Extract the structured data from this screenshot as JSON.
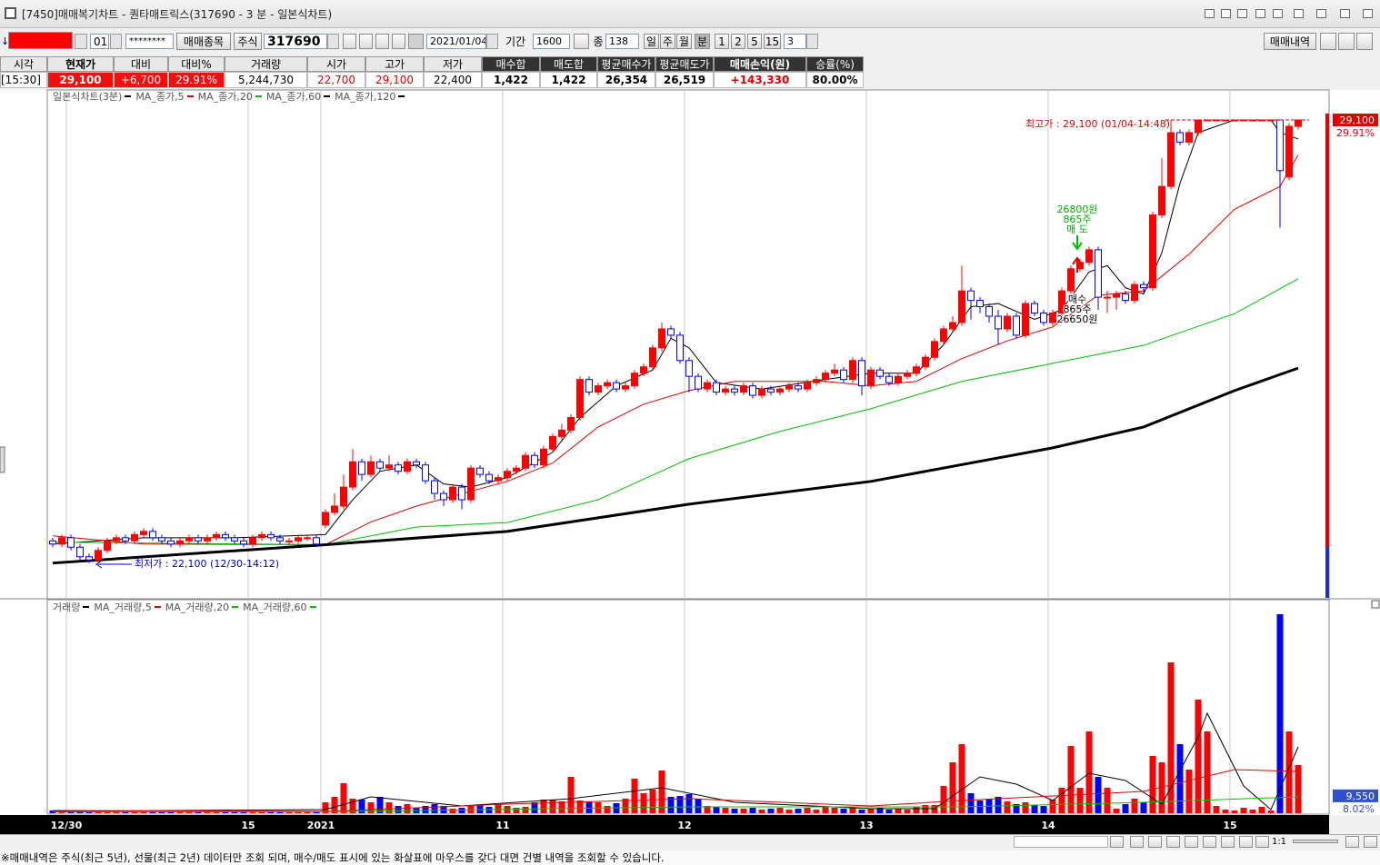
{
  "window": {
    "title": "[7450]매매복기차트 - 퀀타매트릭스(317690 - 3 분 - 일본식차트)"
  },
  "toolbar": {
    "arrow": "↓",
    "account_no": "01",
    "password": "********",
    "stock_button": "매매종목",
    "market": "주식",
    "code": "317690",
    "date": "2021/01/04",
    "period_label": "기간",
    "period": "1600",
    "count_label": "종",
    "count": "138",
    "units": [
      "일",
      "주",
      "월",
      "분"
    ],
    "intervals": [
      "1",
      "2",
      "5",
      "15"
    ],
    "interval": "3",
    "history_button": "매매내역"
  },
  "quote": {
    "headers": [
      "시각",
      "현재가",
      "대비",
      "대비%",
      "거래량",
      "시가",
      "고가",
      "저가",
      "매수합",
      "매도합",
      "평균매수가",
      "평균매도가",
      "매매손익(원)",
      "승률(%)"
    ],
    "values": [
      "[15:30]",
      "29,100",
      "+6,700",
      "29.91%",
      "5,244,730",
      "22,700",
      "29,100",
      "22,400",
      "1,422",
      "1,422",
      "26,354",
      "26,519",
      "+143,330",
      "80.00%"
    ]
  },
  "chart": {
    "type": "candlestick",
    "title": "일본식차트(3분)",
    "up_color": "#ff0000",
    "down_color": "#0000ff",
    "ylim": [
      21550,
      29560
    ],
    "xticks": [
      {
        "value": 1.5,
        "label": "12/30"
      },
      {
        "value": 21.5,
        "label": "15"
      },
      {
        "value": 29.5,
        "label": "2021"
      },
      {
        "value": 49.5,
        "label": "11"
      },
      {
        "value": 69.5,
        "label": "12"
      },
      {
        "value": 89.5,
        "label": "13"
      },
      {
        "value": 109.5,
        "label": "14"
      },
      {
        "value": 129.5,
        "label": "15"
      }
    ],
    "candles": [
      [
        22450,
        22500,
        22350,
        22400
      ],
      [
        22400,
        22550,
        22350,
        22500
      ],
      [
        22500,
        22550,
        22300,
        22350
      ],
      [
        22350,
        22400,
        22150,
        22200
      ],
      [
        22200,
        22250,
        22100,
        22150
      ],
      [
        22150,
        22350,
        22100,
        22300
      ],
      [
        22300,
        22500,
        22250,
        22450
      ],
      [
        22450,
        22550,
        22400,
        22500
      ],
      [
        22500,
        22550,
        22400,
        22450
      ],
      [
        22450,
        22600,
        22400,
        22550
      ],
      [
        22550,
        22650,
        22500,
        22600
      ],
      [
        22600,
        22650,
        22450,
        22500
      ],
      [
        22500,
        22550,
        22400,
        22450
      ],
      [
        22450,
        22500,
        22350,
        22400
      ],
      [
        22400,
        22500,
        22350,
        22450
      ],
      [
        22450,
        22550,
        22400,
        22500
      ],
      [
        22500,
        22550,
        22400,
        22450
      ],
      [
        22450,
        22550,
        22400,
        22500
      ],
      [
        22500,
        22600,
        22450,
        22550
      ],
      [
        22550,
        22600,
        22450,
        22500
      ],
      [
        22500,
        22550,
        22400,
        22450
      ],
      [
        22450,
        22500,
        22350,
        22400
      ],
      [
        22400,
        22550,
        22350,
        22500
      ],
      [
        22500,
        22600,
        22450,
        22550
      ],
      [
        22550,
        22600,
        22450,
        22500
      ],
      [
        22500,
        22550,
        22400,
        22450
      ],
      [
        22450,
        22500,
        22400,
        22450
      ],
      [
        22450,
        22550,
        22400,
        22500
      ],
      [
        22500,
        22550,
        22450,
        22500
      ],
      [
        22500,
        22550,
        22350,
        22400
      ],
      [
        22700,
        22950,
        22650,
        22900
      ],
      [
        22900,
        23200,
        22850,
        23000
      ],
      [
        23000,
        23500,
        22950,
        23300
      ],
      [
        23300,
        23900,
        23250,
        23700
      ],
      [
        23700,
        23750,
        23400,
        23500
      ],
      [
        23500,
        23800,
        23450,
        23700
      ],
      [
        23700,
        23750,
        23550,
        23600
      ],
      [
        23600,
        23800,
        23550,
        23650
      ],
      [
        23650,
        23700,
        23500,
        23550
      ],
      [
        23550,
        23750,
        23500,
        23700
      ],
      [
        23700,
        23750,
        23600,
        23650
      ],
      [
        23650,
        23700,
        23350,
        23400
      ],
      [
        23400,
        23450,
        23100,
        23200
      ],
      [
        23200,
        23250,
        23000,
        23100
      ],
      [
        23100,
        23350,
        23050,
        23300
      ],
      [
        23300,
        23350,
        22950,
        23100
      ],
      [
        23100,
        23650,
        23050,
        23600
      ],
      [
        23600,
        23650,
        23450,
        23500
      ],
      [
        23500,
        23550,
        23350,
        23400
      ],
      [
        23400,
        23500,
        23350,
        23450
      ],
      [
        23450,
        23600,
        23400,
        23550
      ],
      [
        23550,
        23650,
        23500,
        23600
      ],
      [
        23600,
        23850,
        23550,
        23800
      ],
      [
        23800,
        23850,
        23600,
        23650
      ],
      [
        23650,
        23950,
        23600,
        23900
      ],
      [
        23900,
        24150,
        23850,
        24100
      ],
      [
        24100,
        24300,
        24050,
        24200
      ],
      [
        24200,
        24450,
        24150,
        24400
      ],
      [
        24400,
        25050,
        24350,
        25000
      ],
      [
        25000,
        25050,
        24750,
        24800
      ],
      [
        24800,
        24950,
        24750,
        24900
      ],
      [
        24900,
        25000,
        24850,
        24950
      ],
      [
        24950,
        25000,
        24800,
        24850
      ],
      [
        24850,
        24950,
        24800,
        24900
      ],
      [
        24900,
        25150,
        24850,
        25100
      ],
      [
        25100,
        25250,
        25050,
        25200
      ],
      [
        25200,
        25550,
        25150,
        25500
      ],
      [
        25500,
        25900,
        25450,
        25800
      ],
      [
        25800,
        25850,
        25650,
        25700
      ],
      [
        25700,
        25750,
        25250,
        25300
      ],
      [
        25300,
        25350,
        24800,
        25050
      ],
      [
        25050,
        25100,
        24800,
        24850
      ],
      [
        24850,
        25000,
        24800,
        24950
      ],
      [
        24950,
        25000,
        24750,
        24800
      ],
      [
        24800,
        24900,
        24750,
        24850
      ],
      [
        24850,
        24900,
        24750,
        24800
      ],
      [
        24800,
        24950,
        24750,
        24900
      ],
      [
        24900,
        24950,
        24700,
        24750
      ],
      [
        24750,
        24900,
        24700,
        24850
      ],
      [
        24850,
        24900,
        24750,
        24800
      ],
      [
        24800,
        24900,
        24750,
        24850
      ],
      [
        24850,
        24950,
        24800,
        24900
      ],
      [
        24900,
        24950,
        24800,
        24850
      ],
      [
        24850,
        25000,
        24800,
        24950
      ],
      [
        24950,
        25050,
        24900,
        25000
      ],
      [
        25000,
        25150,
        24950,
        25100
      ],
      [
        25100,
        25250,
        25050,
        25150
      ],
      [
        25150,
        25200,
        24950,
        25000
      ],
      [
        25000,
        25350,
        24950,
        25300
      ],
      [
        25300,
        25350,
        24750,
        24900
      ],
      [
        24900,
        25200,
        24850,
        25150
      ],
      [
        25150,
        25200,
        25000,
        25050
      ],
      [
        25050,
        25100,
        24900,
        24950
      ],
      [
        24950,
        25100,
        24900,
        25050
      ],
      [
        25050,
        25150,
        25000,
        25100
      ],
      [
        25100,
        25250,
        25050,
        25200
      ],
      [
        25200,
        25400,
        25150,
        25350
      ],
      [
        25350,
        25650,
        25300,
        25600
      ],
      [
        25600,
        25850,
        25550,
        25800
      ],
      [
        25800,
        26000,
        25750,
        25900
      ],
      [
        25900,
        26800,
        25850,
        26400
      ],
      [
        26400,
        26450,
        25950,
        26250
      ],
      [
        26250,
        26300,
        26050,
        26150
      ],
      [
        26150,
        26200,
        25900,
        26000
      ],
      [
        26000,
        26100,
        25550,
        25800
      ],
      [
        25800,
        26050,
        25750,
        26000
      ],
      [
        26000,
        26050,
        25650,
        25700
      ],
      [
        25700,
        26250,
        25650,
        26200
      ],
      [
        26200,
        26250,
        26000,
        26050
      ],
      [
        26050,
        26100,
        25850,
        25900
      ],
      [
        25900,
        26100,
        25850,
        26050
      ],
      [
        26050,
        26450,
        26000,
        26400
      ],
      [
        26400,
        26800,
        26350,
        26750
      ],
      [
        26750,
        26900,
        26700,
        26850
      ],
      [
        26850,
        27100,
        26800,
        27050
      ],
      [
        27050,
        27100,
        26100,
        26300
      ],
      [
        26300,
        26400,
        26050,
        26300
      ],
      [
        26300,
        26400,
        26100,
        26350
      ],
      [
        26350,
        26400,
        26200,
        26250
      ],
      [
        26250,
        26550,
        26200,
        26500
      ],
      [
        26500,
        26550,
        26350,
        26450
      ],
      [
        26450,
        27650,
        26400,
        27600
      ],
      [
        27600,
        28500,
        27550,
        28050
      ],
      [
        28050,
        29100,
        28000,
        28900
      ],
      [
        28900,
        28950,
        28700,
        28750
      ],
      [
        28750,
        28950,
        28700,
        28900
      ],
      [
        28900,
        29100,
        28850,
        29100
      ],
      [
        29100,
        29100,
        29100,
        29100
      ],
      [
        29100,
        29100,
        29100,
        29100
      ],
      [
        29100,
        29100,
        29100,
        29100
      ],
      [
        29100,
        29100,
        29100,
        29100
      ],
      [
        29100,
        29100,
        29100,
        29100
      ],
      [
        29100,
        29100,
        29100,
        29100
      ],
      [
        29100,
        29100,
        29100,
        29100
      ],
      [
        29100,
        29100,
        29100,
        29100
      ],
      [
        29100,
        29100,
        27400,
        28300
      ],
      [
        28200,
        29050,
        28150,
        29000
      ],
      [
        29000,
        29100,
        28950,
        29100
      ]
    ],
    "ma": [
      {
        "name": "MA_종가,5",
        "color": "#000000",
        "width": 1,
        "x": [
          0,
          10,
          20,
          30,
          33,
          36,
          40,
          43,
          46,
          50,
          55,
          58,
          62,
          66,
          68,
          70,
          73,
          78,
          85,
          90,
          95,
          98,
          101,
          104,
          108,
          111,
          114,
          116,
          118,
          120,
          122,
          124,
          126,
          130,
          134,
          135,
          137
        ],
        "values": [
          22400,
          22500,
          22500,
          22550,
          23100,
          23550,
          23650,
          23350,
          23300,
          23450,
          23850,
          24400,
          24900,
          25150,
          25650,
          25500,
          24950,
          24850,
          25000,
          25100,
          25100,
          25550,
          26150,
          26200,
          25950,
          26100,
          26700,
          26800,
          26450,
          26350,
          27000,
          28100,
          28900,
          29100,
          29100,
          28900,
          28800
        ]
      },
      {
        "name": "MA_종가,20",
        "color": "#e00000",
        "width": 1,
        "x": [
          0,
          10,
          30,
          35,
          40,
          50,
          55,
          60,
          65,
          70,
          75,
          85,
          90,
          95,
          100,
          105,
          110,
          115,
          120,
          125,
          130,
          135,
          137
        ],
        "values": [
          22530,
          22400,
          22390,
          22750,
          23000,
          23390,
          23680,
          24250,
          24610,
          24825,
          24970,
          24970,
          24900,
          24970,
          25330,
          25610,
          25830,
          26330,
          26400,
          26980,
          27690,
          28050,
          28550
        ]
      },
      {
        "name": "MA_종가,60",
        "color": "#00c000",
        "width": 1,
        "x": [
          0,
          30,
          40,
          50,
          60,
          70,
          80,
          90,
          100,
          110,
          120,
          130,
          137
        ],
        "values": [
          22430,
          22390,
          22670,
          22740,
          23100,
          23750,
          24180,
          24540,
          24970,
          25255,
          25540,
          26040,
          26590
        ]
      },
      {
        "name": "MA_종가,120",
        "color": "#000000",
        "width": 3,
        "x": [
          0,
          30,
          50,
          70,
          90,
          110,
          120,
          130,
          137
        ],
        "values": [
          22100,
          22390,
          22600,
          23030,
          23390,
          23920,
          24250,
          24825,
          25180
        ]
      }
    ],
    "high": "최고가 : 29,100 (01/04-14:48)",
    "low": "최저가 : 22,100 (12/30-14:12)",
    "sell": {
      "price": "26800원",
      "qty": "865주",
      "label": "매 도"
    },
    "buy": {
      "label": "매수",
      "qty": "865주",
      "price": "26650원"
    },
    "current": {
      "value": 29100,
      "label": "29,100"
    },
    "change": "29.91%",
    "volume": {
      "title": "거래량",
      "ylim": [
        0,
        115000
      ],
      "values": [
        1500,
        1200,
        1000,
        1300,
        800,
        900,
        1100,
        700,
        600,
        800,
        900,
        700,
        600,
        800,
        900,
        700,
        800,
        600,
        700,
        900,
        800,
        600,
        700,
        800,
        900,
        700,
        600,
        800,
        700,
        900,
        6000,
        9000,
        16500,
        8000,
        7500,
        6000,
        9000,
        6000,
        4000,
        5000,
        3000,
        4000,
        5000,
        4000,
        2500,
        3000,
        4500,
        4500,
        3500,
        5000,
        4000,
        3000,
        3500,
        6000,
        7500,
        7500,
        6500,
        20000,
        7000,
        6500,
        6000,
        4000,
        5500,
        8000,
        19000,
        11000,
        13000,
        23500,
        9000,
        9500,
        10500,
        8000,
        4000,
        3500,
        3000,
        2500,
        2500,
        3000,
        2000,
        2500,
        3000,
        2000,
        2500,
        3000,
        2000,
        3500,
        3000,
        2500,
        3000,
        2000,
        2500,
        3000,
        2000,
        2500,
        2000,
        3500,
        4500,
        4500,
        15000,
        28000,
        38000,
        11000,
        7000,
        8000,
        9000,
        6500,
        5000,
        6000,
        4500,
        4000,
        7500,
        14000,
        37000,
        14000,
        45000,
        20000,
        14000,
        2500,
        5000,
        8000,
        6000,
        31500,
        28000,
        83000,
        38000,
        24000,
        62500,
        45000,
        4000,
        2000,
        1500,
        3000,
        2000,
        3500,
        1500,
        109500,
        45000,
        26500
      ],
      "ma": [
        {
          "name": "MA_거래량,5",
          "color": "#000000",
          "x": [
            0,
            30,
            35,
            45,
            57,
            67,
            75,
            90,
            97,
            102,
            106,
            110,
            114,
            118,
            122,
            126,
            127,
            131,
            134,
            137
          ],
          "values": [
            1000,
            2000,
            9000,
            4000,
            8000,
            14000,
            6000,
            2500,
            2500,
            20000,
            16000,
            7000,
            22000,
            18000,
            5000,
            42000,
            55000,
            15000,
            2000,
            36500
          ]
        },
        {
          "name": "MA_거래량,20",
          "color": "#e00000",
          "x": [
            0,
            30,
            50,
            70,
            90,
            100,
            120,
            130,
            137
          ],
          "values": [
            1500,
            1000,
            5000,
            8000,
            4000,
            7000,
            12000,
            24000,
            23000
          ]
        },
        {
          "name": "MA_거래량,60",
          "color": "#00c000",
          "x": [
            0,
            30,
            70,
            100,
            120,
            137
          ],
          "values": [
            700,
            800,
            3500,
            3500,
            6000,
            9000
          ]
        }
      ],
      "current": {
        "value": 9550,
        "label": "9,550"
      },
      "ratio": "8.02%"
    }
  },
  "scrollbar": {
    "zoom": "1:1"
  },
  "footer": "※매매내역은 주식(최근 5년), 선물(최근 2년) 데이터만 조회 되며, 매수/매도 표시에 있는 화살표에 마우스를 갖다 대면 건별 내역을 조회할 수 있습니다."
}
